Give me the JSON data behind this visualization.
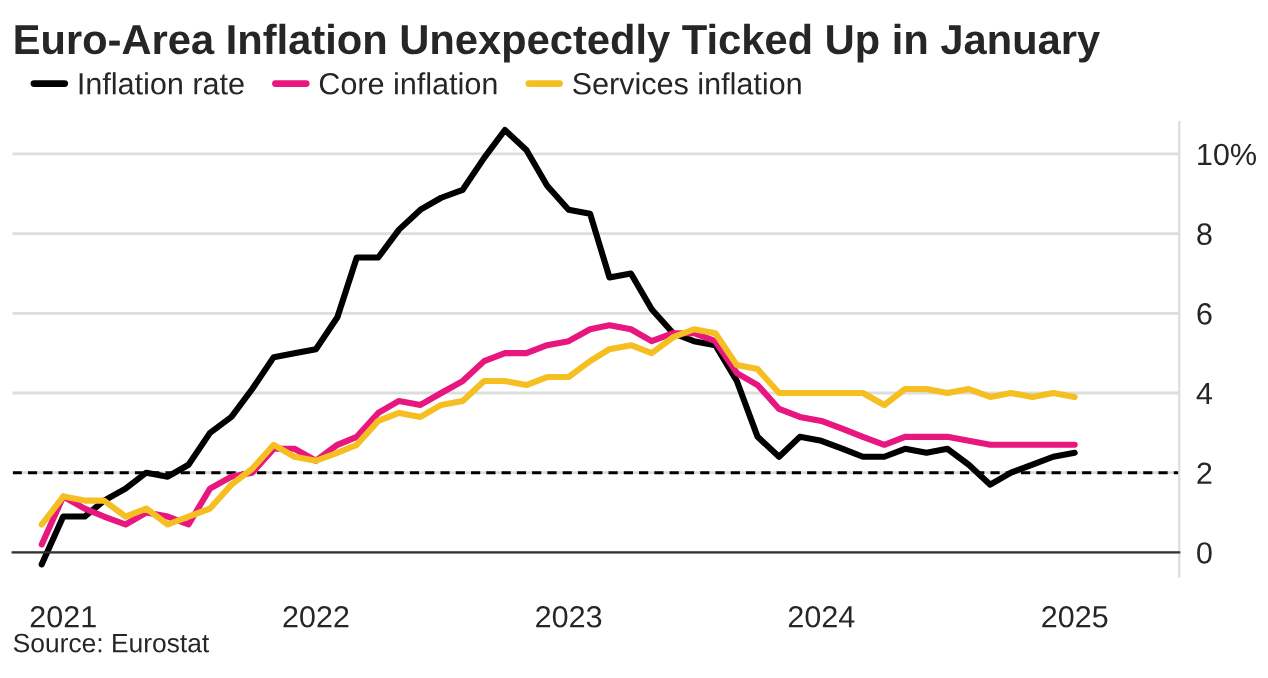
{
  "chart_data": {
    "type": "line",
    "title": "Euro-Area Inflation Unexpectedly Ticked Up in January",
    "x": [
      "2020-12",
      "2021-01",
      "2021-02",
      "2021-03",
      "2021-04",
      "2021-05",
      "2021-06",
      "2021-07",
      "2021-08",
      "2021-09",
      "2021-10",
      "2021-11",
      "2021-12",
      "2022-01",
      "2022-02",
      "2022-03",
      "2022-04",
      "2022-05",
      "2022-06",
      "2022-07",
      "2022-08",
      "2022-09",
      "2022-10",
      "2022-11",
      "2022-12",
      "2023-01",
      "2023-02",
      "2023-03",
      "2023-04",
      "2023-05",
      "2023-06",
      "2023-07",
      "2023-08",
      "2023-09",
      "2023-10",
      "2023-11",
      "2023-12",
      "2024-01",
      "2024-02",
      "2024-03",
      "2024-04",
      "2024-05",
      "2024-06",
      "2024-07",
      "2024-08",
      "2024-09",
      "2024-10",
      "2024-11",
      "2024-12",
      "2025-01"
    ],
    "series": [
      {
        "name": "Inflation rate",
        "color": "#000000",
        "values": [
          -0.3,
          0.9,
          0.9,
          1.3,
          1.6,
          2.0,
          1.9,
          2.2,
          3.0,
          3.4,
          4.1,
          4.9,
          5.0,
          5.1,
          5.9,
          7.4,
          7.4,
          8.1,
          8.6,
          8.9,
          9.1,
          9.9,
          10.6,
          10.1,
          9.2,
          8.6,
          8.5,
          6.9,
          7.0,
          6.1,
          5.5,
          5.3,
          5.2,
          4.3,
          2.9,
          2.4,
          2.9,
          2.8,
          2.6,
          2.4,
          2.4,
          2.6,
          2.5,
          2.6,
          2.2,
          1.7,
          2.0,
          2.2,
          2.4,
          2.5
        ]
      },
      {
        "name": "Core inflation",
        "color": "#e8167f",
        "values": [
          0.2,
          1.4,
          1.1,
          0.9,
          0.7,
          1.0,
          0.9,
          0.7,
          1.6,
          1.9,
          2.0,
          2.6,
          2.6,
          2.3,
          2.7,
          2.9,
          3.5,
          3.8,
          3.7,
          4.0,
          4.3,
          4.8,
          5.0,
          5.0,
          5.2,
          5.3,
          5.6,
          5.7,
          5.6,
          5.3,
          5.5,
          5.5,
          5.3,
          4.5,
          4.2,
          3.6,
          3.4,
          3.3,
          3.1,
          2.9,
          2.7,
          2.9,
          2.9,
          2.9,
          2.8,
          2.7,
          2.7,
          2.7,
          2.7,
          2.7
        ]
      },
      {
        "name": "Services inflation",
        "color": "#f5bf22",
        "values": [
          0.7,
          1.4,
          1.3,
          1.3,
          0.9,
          1.1,
          0.7,
          0.9,
          1.1,
          1.7,
          2.1,
          2.7,
          2.4,
          2.3,
          2.5,
          2.7,
          3.3,
          3.5,
          3.4,
          3.7,
          3.8,
          4.3,
          4.3,
          4.2,
          4.4,
          4.4,
          4.8,
          5.1,
          5.2,
          5.0,
          5.4,
          5.6,
          5.5,
          4.7,
          4.6,
          4.0,
          4.0,
          4.0,
          4.0,
          4.0,
          3.7,
          4.1,
          4.1,
          4.0,
          4.1,
          3.9,
          4.0,
          3.9,
          4.0,
          3.9
        ]
      }
    ],
    "xlim": [
      "2020-10-20",
      "2025-06-01"
    ],
    "xticks": [
      "2021",
      "2022",
      "2023",
      "2024",
      "2025"
    ],
    "ylim": [
      -0.6,
      10.8
    ],
    "yticks": [
      0,
      2,
      4,
      6,
      8,
      {
        "value": 10,
        "label": "10%"
      }
    ],
    "ref_lines": [
      {
        "axis": "y",
        "value": 2,
        "color": "#000000",
        "line_style": "dashed"
      }
    ],
    "grid": "y",
    "legend": "top left",
    "annotations": [
      "Source: Eurostat"
    ]
  }
}
